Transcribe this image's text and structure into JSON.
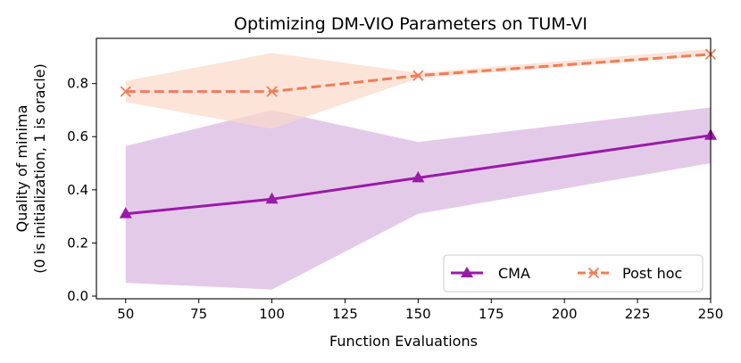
{
  "chart_data": {
    "type": "line",
    "title": "Optimizing DM-VIO Parameters on TUM-VI",
    "xlabel": "Function Evaluations",
    "ylabel_line1": "Quality of minima",
    "ylabel_line2": "(0 is initialization, 1 is oracle)",
    "xlim": [
      40,
      250
    ],
    "ylim": [
      -0.01,
      0.97
    ],
    "xticks": [
      50,
      75,
      100,
      125,
      150,
      175,
      200,
      225,
      250
    ],
    "yticks": [
      0.0,
      0.2,
      0.4,
      0.6,
      0.8
    ],
    "x": [
      50,
      100,
      150,
      250
    ],
    "series": [
      {
        "name": "CMA",
        "values": [
          0.31,
          0.365,
          0.445,
          0.605
        ],
        "lower": [
          0.05,
          0.025,
          0.31,
          0.5
        ],
        "upper": [
          0.565,
          0.7,
          0.58,
          0.71
        ],
        "color": "#9a1aa8",
        "band_color": "#d9b3e0",
        "marker": "triangle",
        "linestyle": "solid"
      },
      {
        "name": "Post hoc",
        "values": [
          0.77,
          0.77,
          0.83,
          0.91
        ],
        "lower": [
          0.73,
          0.63,
          0.82,
          0.905
        ],
        "upper": [
          0.81,
          0.915,
          0.84,
          0.93
        ],
        "color": "#f07d56",
        "band_color": "#fbd9c9",
        "marker": "x",
        "linestyle": "dashed"
      }
    ],
    "legend": "lower-right"
  }
}
